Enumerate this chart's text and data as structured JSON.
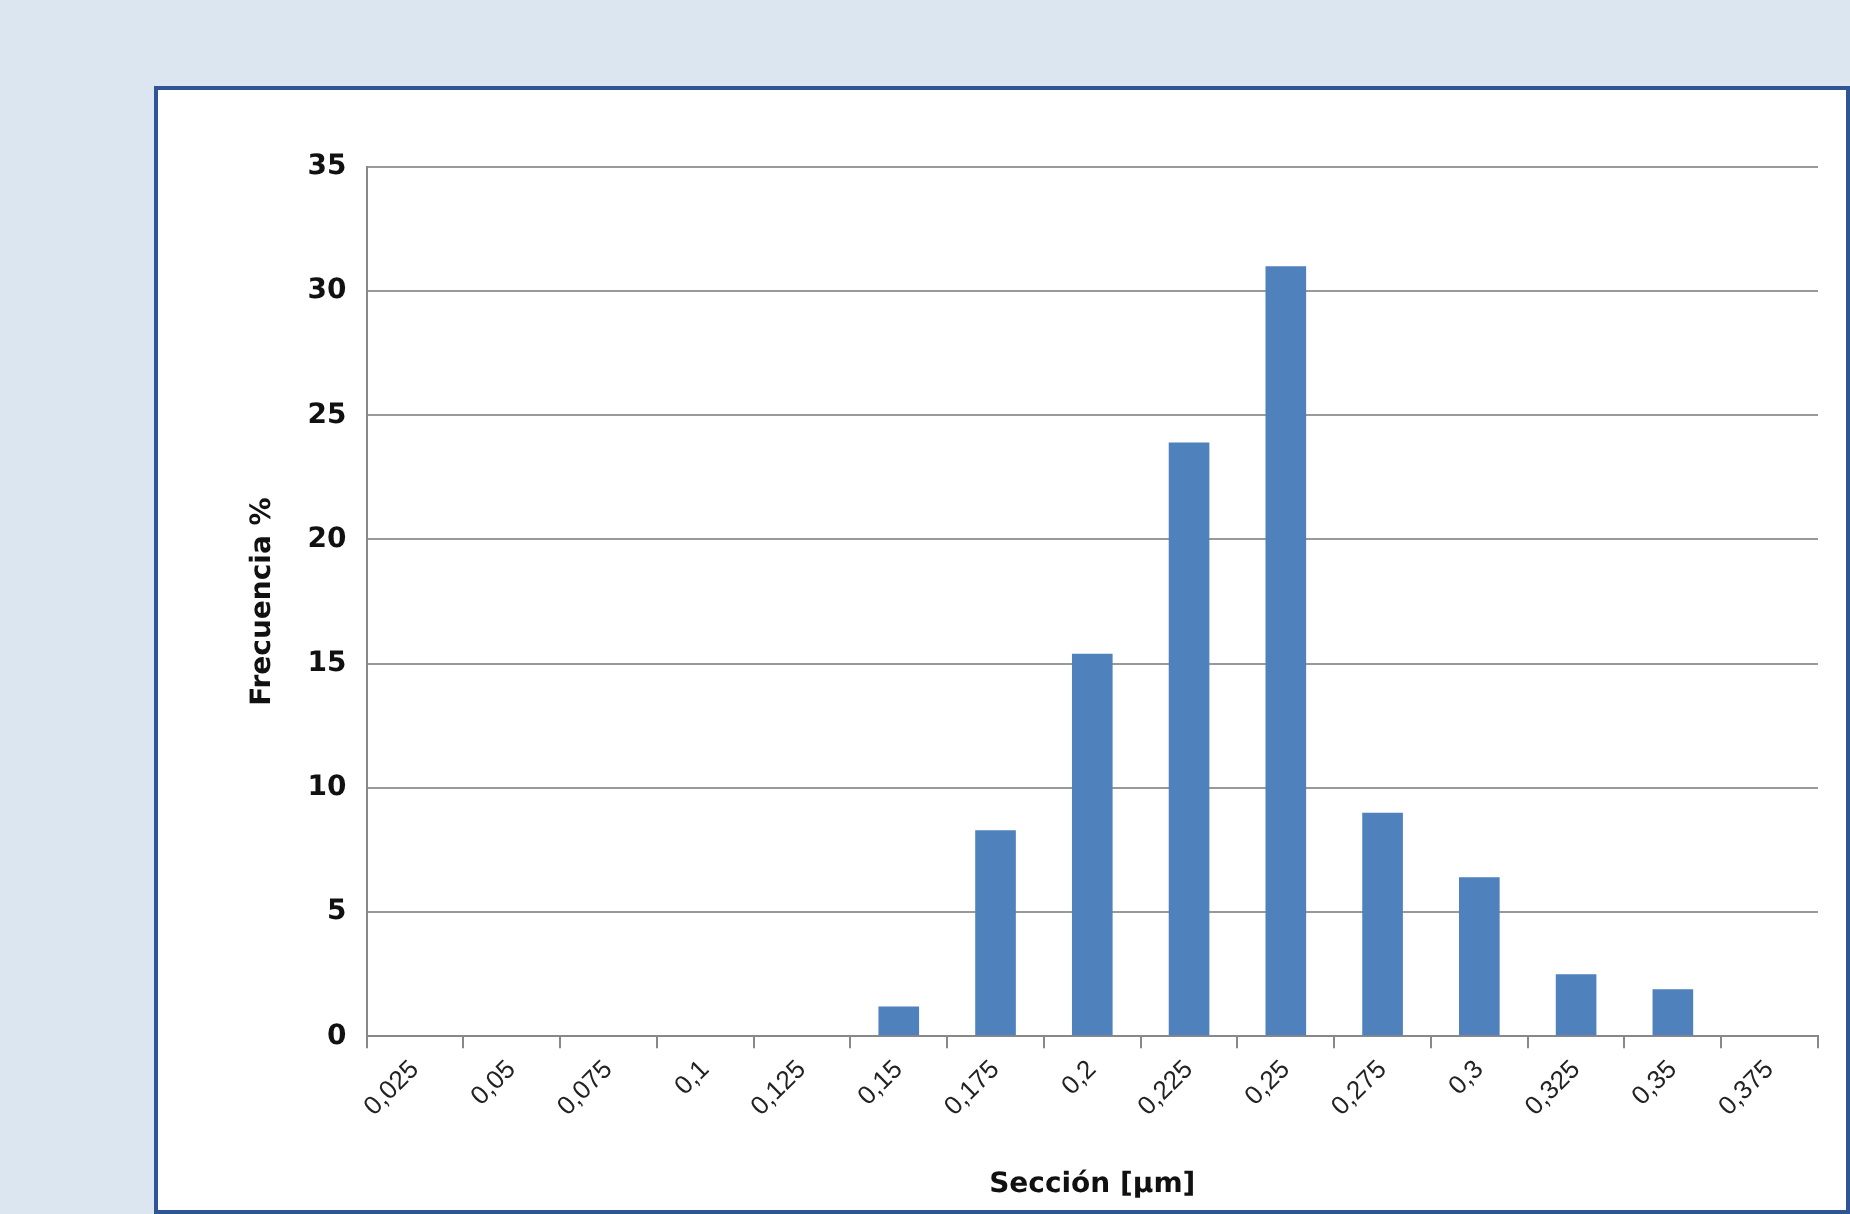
{
  "chart_data": {
    "type": "bar",
    "xlabel": "Sección [µm]",
    "ylabel": "Frecuencia %",
    "categories": [
      "0,025",
      "0,05",
      "0,075",
      "0,1",
      "0,125",
      "0,15",
      "0,175",
      "0,2",
      "0,225",
      "0,25",
      "0,275",
      "0,3",
      "0,325",
      "0,35",
      "0,375"
    ],
    "values": [
      0,
      0,
      0,
      0,
      0,
      1.2,
      8.3,
      15.4,
      23.9,
      31,
      9,
      6.4,
      2.5,
      1.9,
      0
    ],
    "color": "#4f81bd",
    "ylim": [
      0,
      35
    ],
    "yticks": [
      0,
      5,
      10,
      15,
      20,
      25,
      30,
      35
    ],
    "grid": "y",
    "legend": false
  }
}
